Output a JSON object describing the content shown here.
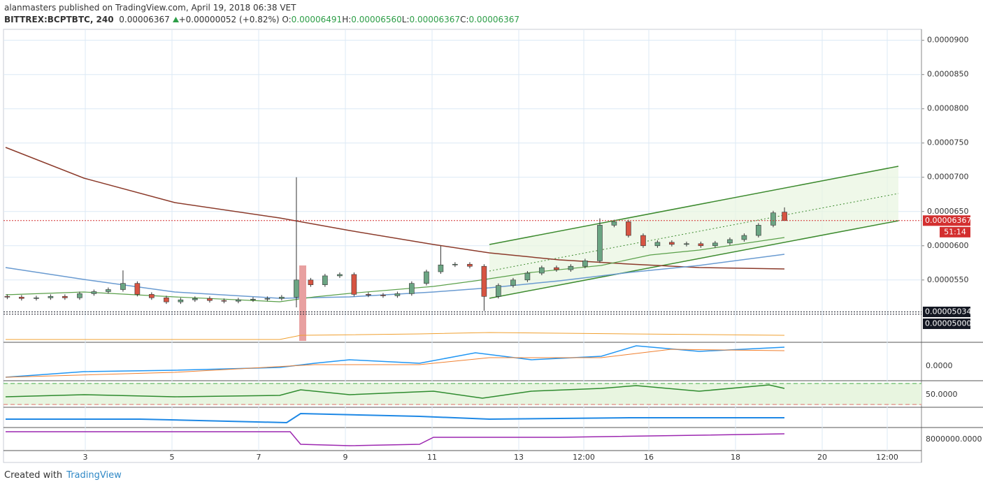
{
  "header": {
    "author_line": "alanmasters published on TradingView.com, April 19, 2018 06:38 VET",
    "symbol": "BITTREX:BCPTBTC, 240",
    "last": "0.00006367",
    "change": "+0.00000052 (+0.82%)",
    "ohlc": [
      {
        "label": "O:",
        "value": "0.00006491"
      },
      {
        "label": "H:",
        "value": "0.00006560"
      },
      {
        "label": "L:",
        "value": "0.00006367"
      },
      {
        "label": "C:",
        "value": "0.00006367"
      }
    ]
  },
  "chart_data": {
    "type": "candlestick",
    "up_color": "#6ba583",
    "down_color": "#d75442",
    "grid": true,
    "xlim": [
      1.113,
      22.29
    ],
    "xticks": [
      3,
      5,
      7,
      9,
      11,
      13,
      {
        "value": 14.5,
        "label": "12:00"
      },
      16,
      18,
      20,
      {
        "value": 21.5,
        "label": "12:00"
      }
    ],
    "ylim": [
      4.59e-05,
      9.16e-05
    ],
    "yticks": [
      {
        "value": 5.5e-05,
        "label": "0.0000550"
      },
      {
        "value": 6e-05,
        "label": "0.0000600"
      },
      {
        "value": 6.5e-05,
        "label": "0.0000650"
      },
      {
        "value": 7e-05,
        "label": "0.0000700"
      },
      {
        "value": 7.5e-05,
        "label": "0.0000750"
      },
      {
        "value": 8e-05,
        "label": "0.0000800"
      },
      {
        "value": 8.5e-05,
        "label": "0.0000850"
      },
      {
        "value": 9e-05,
        "label": "0.0000900"
      }
    ],
    "series": {
      "x": [
        1.2,
        1.53,
        1.87,
        2.2,
        2.53,
        2.87,
        3.2,
        3.53,
        3.87,
        4.2,
        4.53,
        4.87,
        5.2,
        5.53,
        5.87,
        6.2,
        6.53,
        6.87,
        7.2,
        7.53,
        7.87,
        8.2,
        8.53,
        8.87,
        9.2,
        9.53,
        9.87,
        10.2,
        10.53,
        10.87,
        11.2,
        11.53,
        11.87,
        12.2,
        12.53,
        12.87,
        13.2,
        13.53,
        13.87,
        14.2,
        14.53,
        14.87,
        15.2,
        15.53,
        15.87,
        16.2,
        16.53,
        16.87,
        17.2,
        17.53,
        17.87,
        18.2,
        18.53,
        18.87,
        19.13
      ],
      "open": [
        5.26e-05,
        5.25e-05,
        5.23e-05,
        5.24e-05,
        5.26e-05,
        5.24e-05,
        5.3e-05,
        5.33e-05,
        5.36e-05,
        5.45e-05,
        5.29e-05,
        5.24e-05,
        5.18e-05,
        5.21e-05,
        5.23e-05,
        5.2e-05,
        5.19e-05,
        5.21e-05,
        5.22e-05,
        5.23e-05,
        5.25e-05,
        5.5e-05,
        5.43e-05,
        5.56e-05,
        5.58e-05,
        5.29e-05,
        5.28e-05,
        5.27e-05,
        5.3e-05,
        5.45e-05,
        5.62e-05,
        5.72e-05,
        5.73e-05,
        5.7e-05,
        5.26e-05,
        5.42e-05,
        5.5e-05,
        5.6e-05,
        5.68e-05,
        5.65e-05,
        5.7e-05,
        5.78e-05,
        6.3e-05,
        6.35e-05,
        6.15e-05,
        6e-05,
        6.05e-05,
        6.02e-05,
        6.03e-05,
        6e-05,
        6.04e-05,
        6.09e-05,
        6.15e-05,
        6.3e-05,
        6.491e-05
      ],
      "high": [
        5.29e-05,
        5.28e-05,
        5.27e-05,
        5.29e-05,
        5.29e-05,
        5.33e-05,
        5.36e-05,
        5.39e-05,
        5.64e-05,
        5.48e-05,
        5.32e-05,
        5.27e-05,
        5.24e-05,
        5.26e-05,
        5.26e-05,
        5.23e-05,
        5.24e-05,
        5.25e-05,
        5.26e-05,
        5.28e-05,
        7e-05,
        5.53e-05,
        5.59e-05,
        5.61e-05,
        5.61e-05,
        5.32e-05,
        5.31e-05,
        5.33e-05,
        5.48e-05,
        5.65e-05,
        6e-05,
        5.76e-05,
        5.76e-05,
        5.73e-05,
        5.45e-05,
        5.53e-05,
        5.63e-05,
        5.71e-05,
        5.71e-05,
        5.73e-05,
        5.81e-05,
        6.4e-05,
        6.38e-05,
        6.38e-05,
        6.18e-05,
        6.08e-05,
        6.08e-05,
        6.06e-05,
        6.06e-05,
        6.07e-05,
        6.12e-05,
        6.18e-05,
        6.33e-05,
        6.51e-05,
        6.56e-05
      ],
      "low": [
        5.22e-05,
        5.2e-05,
        5.2e-05,
        5.21e-05,
        5.21e-05,
        5.21e-05,
        5.27e-05,
        5.3e-05,
        5.33e-05,
        5.26e-05,
        5.21e-05,
        5.15e-05,
        5.15e-05,
        5.18e-05,
        5.17e-05,
        5.16e-05,
        5.16e-05,
        5.18e-05,
        5.19e-05,
        5.2e-05,
        5.1e-05,
        5.4e-05,
        5.4e-05,
        5.53e-05,
        5.26e-05,
        5.25e-05,
        5.24e-05,
        5.24e-05,
        5.27e-05,
        5.42e-05,
        5.59e-05,
        5.69e-05,
        5.67e-05,
        5.05e-05,
        5.23e-05,
        5.39e-05,
        5.47e-05,
        5.57e-05,
        5.62e-05,
        5.62e-05,
        5.67e-05,
        5.75e-05,
        6.27e-05,
        6.12e-05,
        5.97e-05,
        5.97e-05,
        5.99e-05,
        5.99e-05,
        5.97e-05,
        5.97e-05,
        6.01e-05,
        6.06e-05,
        6.12e-05,
        6.27e-05,
        6.367e-05
      ],
      "close": [
        5.25e-05,
        5.23e-05,
        5.24e-05,
        5.26e-05,
        5.24e-05,
        5.3e-05,
        5.33e-05,
        5.36e-05,
        5.45e-05,
        5.29e-05,
        5.24e-05,
        5.18e-05,
        5.21e-05,
        5.23e-05,
        5.2e-05,
        5.19e-05,
        5.21e-05,
        5.22e-05,
        5.23e-05,
        5.25e-05,
        5.5e-05,
        5.43e-05,
        5.56e-05,
        5.58e-05,
        5.29e-05,
        5.28e-05,
        5.27e-05,
        5.3e-05,
        5.45e-05,
        5.62e-05,
        5.72e-05,
        5.73e-05,
        5.7e-05,
        5.26e-05,
        5.42e-05,
        5.5e-05,
        5.6e-05,
        5.68e-05,
        5.65e-05,
        5.7e-05,
        5.78e-05,
        6.3e-05,
        6.35e-05,
        6.15e-05,
        6e-05,
        6.05e-05,
        6.02e-05,
        6.03e-05,
        6e-05,
        6.04e-05,
        6.09e-05,
        6.15e-05,
        6.3e-05,
        6.48e-05,
        6.367e-05
      ]
    },
    "price_lines": [
      {
        "value": 6.367e-05,
        "label": "0.00006367",
        "color": "#d32f2f"
      },
      {
        "value": 5.034e-05,
        "label": "0.00005034",
        "color": "#131722"
      },
      {
        "value": 5e-05,
        "label": "0.00005000",
        "color": "#131722"
      }
    ],
    "countdown": "51:14",
    "pane_labels": [
      "0.0000",
      "50.0000",
      "8000000.0000"
    ]
  },
  "footer": {
    "created": "Created with",
    "brand": "TradingView"
  }
}
